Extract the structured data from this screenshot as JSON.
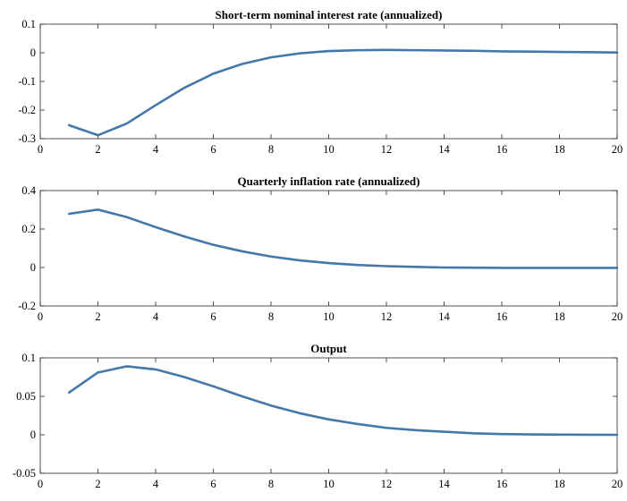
{
  "chart_data": [
    {
      "type": "line",
      "title": "Short-term nominal interest rate (annualized)",
      "xlabel": "",
      "ylabel": "",
      "xlim": [
        0,
        20
      ],
      "ylim": [
        -0.3,
        0.1
      ],
      "xticks": [
        0,
        2,
        4,
        6,
        8,
        10,
        12,
        14,
        16,
        18,
        20
      ],
      "yticks": [
        -0.3,
        -0.2,
        -0.1,
        0,
        0.1
      ],
      "ytick_labels": [
        "-0.3",
        "-0.2",
        "-0.1",
        "0",
        "0.1"
      ],
      "grid": false,
      "series": [
        {
          "x": [
            1,
            2,
            3,
            4,
            5,
            6,
            7,
            8,
            9,
            10,
            11,
            12,
            13,
            14,
            15,
            16,
            17,
            18,
            19,
            20
          ],
          "values": [
            -0.253,
            -0.288,
            -0.247,
            -0.183,
            -0.122,
            -0.073,
            -0.039,
            -0.016,
            -0.002,
            0.006,
            0.009,
            0.01,
            0.009,
            0.008,
            0.007,
            0.005,
            0.004,
            0.003,
            0.002,
            0.001
          ],
          "color": "#4477aa"
        }
      ]
    },
    {
      "type": "line",
      "title": "Quarterly inflation rate (annualized)",
      "xlabel": "",
      "ylabel": "",
      "xlim": [
        0,
        20
      ],
      "ylim": [
        -0.2,
        0.4
      ],
      "xticks": [
        0,
        2,
        4,
        6,
        8,
        10,
        12,
        14,
        16,
        18,
        20
      ],
      "yticks": [
        -0.2,
        0,
        0.2,
        0.4
      ],
      "ytick_labels": [
        "-0.2",
        "0",
        "0.2",
        "0.4"
      ],
      "grid": false,
      "series": [
        {
          "x": [
            1,
            2,
            3,
            4,
            5,
            6,
            7,
            8,
            9,
            10,
            11,
            12,
            13,
            14,
            15,
            16,
            17,
            18,
            19,
            20
          ],
          "values": [
            0.279,
            0.301,
            0.262,
            0.21,
            0.161,
            0.118,
            0.084,
            0.057,
            0.037,
            0.023,
            0.013,
            0.007,
            0.003,
            0.0,
            -0.001,
            -0.002,
            -0.002,
            -0.002,
            -0.002,
            -0.002
          ],
          "color": "#4477aa"
        }
      ]
    },
    {
      "type": "line",
      "title": "Output",
      "xlabel": "",
      "ylabel": "",
      "xlim": [
        0,
        20
      ],
      "ylim": [
        -0.05,
        0.1
      ],
      "xticks": [
        0,
        2,
        4,
        6,
        8,
        10,
        12,
        14,
        16,
        18,
        20
      ],
      "yticks": [
        -0.05,
        0,
        0.05,
        0.1
      ],
      "ytick_labels": [
        "-0.05",
        "0",
        "0.05",
        "0.1"
      ],
      "grid": false,
      "series": [
        {
          "x": [
            1,
            2,
            3,
            4,
            5,
            6,
            7,
            8,
            9,
            10,
            11,
            12,
            13,
            14,
            15,
            16,
            17,
            18,
            19,
            20
          ],
          "values": [
            0.055,
            0.081,
            0.089,
            0.085,
            0.075,
            0.063,
            0.05,
            0.038,
            0.028,
            0.02,
            0.014,
            0.009,
            0.006,
            0.004,
            0.002,
            0.001,
            0.0005,
            0.0002,
            0.0001,
            0.0
          ],
          "color": "#4477aa"
        }
      ]
    }
  ]
}
